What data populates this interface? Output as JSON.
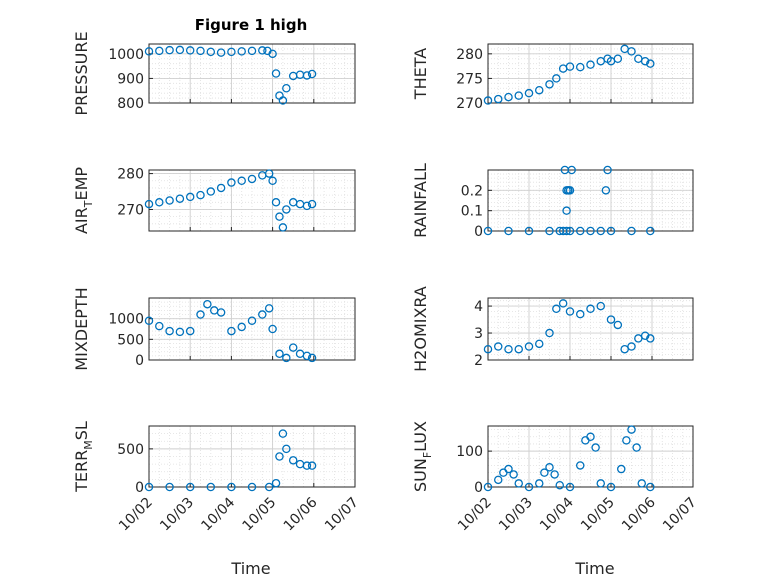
{
  "figure": {
    "title": "Figure 1 high",
    "xlabel": "Time",
    "x_tick_labels": [
      "10/02",
      "10/03",
      "10/04",
      "10/05",
      "10/06",
      "10/07"
    ],
    "x_ticks_days": [
      2,
      3,
      4,
      5,
      6,
      7
    ],
    "marker_color": "#0072BD"
  },
  "chart_data": [
    {
      "type": "scatter",
      "position": "row1-left",
      "ylabel": "PRESSURE",
      "ylabel_sub": "",
      "xlim": [
        "10/02",
        "10/07"
      ],
      "ylim": [
        800,
        1040
      ],
      "yticks": [
        800,
        900,
        1000
      ],
      "grid": true,
      "x": [
        "10/02 00:00",
        "10/02 06:00",
        "10/02 12:00",
        "10/02 18:00",
        "10/03 00:00",
        "10/03 06:00",
        "10/03 12:00",
        "10/03 18:00",
        "10/04 00:00",
        "10/04 06:00",
        "10/04 12:00",
        "10/04 18:00",
        "10/04 21:00",
        "10/05 00:00",
        "10/05 02:00",
        "10/05 04:00",
        "10/05 06:00",
        "10/05 08:00",
        "10/05 12:00",
        "10/05 16:00",
        "10/05 20:00",
        "10/05 23:00"
      ],
      "y": [
        1010,
        1012,
        1015,
        1016,
        1014,
        1012,
        1008,
        1005,
        1008,
        1010,
        1012,
        1014,
        1012,
        1000,
        920,
        830,
        810,
        860,
        910,
        915,
        912,
        918
      ]
    },
    {
      "type": "scatter",
      "position": "row1-right",
      "ylabel": "THETA",
      "ylabel_sub": "",
      "xlim": [
        "10/02",
        "10/07"
      ],
      "ylim": [
        270,
        282
      ],
      "yticks": [
        270,
        275,
        280
      ],
      "grid": true,
      "x": [
        "10/02 00:00",
        "10/02 06:00",
        "10/02 12:00",
        "10/02 18:00",
        "10/03 00:00",
        "10/03 06:00",
        "10/03 12:00",
        "10/03 16:00",
        "10/03 20:00",
        "10/04 00:00",
        "10/04 06:00",
        "10/04 12:00",
        "10/04 18:00",
        "10/04 22:00",
        "10/05 00:00",
        "10/05 04:00",
        "10/05 08:00",
        "10/05 12:00",
        "10/05 16:00",
        "10/05 20:00",
        "10/05 23:00"
      ],
      "y": [
        270.5,
        270.8,
        271.2,
        271.5,
        272.0,
        272.6,
        273.8,
        275.0,
        277.0,
        277.4,
        277.3,
        277.8,
        278.5,
        279.0,
        278.5,
        279.0,
        281.0,
        280.5,
        279.0,
        278.5,
        278.0
      ]
    },
    {
      "type": "scatter",
      "position": "row2-left",
      "ylabel": "AIR",
      "ylabel_sub": "T",
      "ylabel_suffix": "EMP",
      "xlim": [
        "10/02",
        "10/07"
      ],
      "ylim": [
        264,
        281
      ],
      "yticks": [
        270,
        280
      ],
      "grid": true,
      "x": [
        "10/02 00:00",
        "10/02 06:00",
        "10/02 12:00",
        "10/02 18:00",
        "10/03 00:00",
        "10/03 06:00",
        "10/03 12:00",
        "10/03 18:00",
        "10/04 00:00",
        "10/04 06:00",
        "10/04 12:00",
        "10/04 18:00",
        "10/04 22:00",
        "10/05 00:00",
        "10/05 02:00",
        "10/05 04:00",
        "10/05 06:00",
        "10/05 08:00",
        "10/05 12:00",
        "10/05 16:00",
        "10/05 20:00",
        "10/05 23:00"
      ],
      "y": [
        271.5,
        272.0,
        272.5,
        273.0,
        273.5,
        274.0,
        275.0,
        276.0,
        277.5,
        278.0,
        278.5,
        279.5,
        280.0,
        278.0,
        272.0,
        268.0,
        265.0,
        270.0,
        272.0,
        271.5,
        271.0,
        271.5
      ]
    },
    {
      "type": "scatter",
      "position": "row2-right",
      "ylabel": "RAINFALL",
      "ylabel_sub": "",
      "xlim": [
        "10/02",
        "10/07"
      ],
      "ylim": [
        0,
        0.3
      ],
      "yticks": [
        0,
        0.1,
        0.2
      ],
      "grid": true,
      "x": [
        "10/02 00:00",
        "10/02 12:00",
        "10/03 00:00",
        "10/03 12:00",
        "10/03 18:00",
        "10/03 20:00",
        "10/03 22:00",
        "10/04 00:00",
        "10/04 06:00",
        "10/04 12:00",
        "10/04 18:00",
        "10/05 00:00",
        "10/05 12:00",
        "10/05 23:00",
        "10/03 21:00",
        "10/03 22:00",
        "10/03 22:00",
        "10/03 23:00",
        "10/03 23:00",
        "10/04 00:00",
        "10/04 01:00",
        "10/04 21:00",
        "10/04 22:00"
      ],
      "y": [
        0,
        0,
        0,
        0,
        0,
        0,
        0,
        0,
        0,
        0,
        0,
        0,
        0,
        0,
        0.3,
        0.2,
        0.1,
        0.2,
        0.2,
        0.2,
        0.3,
        0.2,
        0.3
      ]
    },
    {
      "type": "scatter",
      "position": "row3-left",
      "ylabel": "MIXDEPTH",
      "ylabel_sub": "",
      "xlim": [
        "10/02",
        "10/07"
      ],
      "ylim": [
        0,
        1500
      ],
      "yticks": [
        0,
        500,
        1000
      ],
      "grid": true,
      "x": [
        "10/02 00:00",
        "10/02 06:00",
        "10/02 12:00",
        "10/02 18:00",
        "10/03 00:00",
        "10/03 06:00",
        "10/03 10:00",
        "10/03 14:00",
        "10/03 18:00",
        "10/04 00:00",
        "10/04 06:00",
        "10/04 12:00",
        "10/04 18:00",
        "10/04 22:00",
        "10/05 00:00",
        "10/05 04:00",
        "10/05 08:00",
        "10/05 12:00",
        "10/05 16:00",
        "10/05 20:00",
        "10/05 23:00"
      ],
      "y": [
        950,
        820,
        700,
        680,
        700,
        1100,
        1350,
        1200,
        1150,
        700,
        800,
        950,
        1100,
        1250,
        750,
        150,
        50,
        300,
        150,
        100,
        50
      ]
    },
    {
      "type": "scatter",
      "position": "row3-right",
      "ylabel": "H2OMIXRA",
      "ylabel_sub": "",
      "xlim": [
        "10/02",
        "10/07"
      ],
      "ylim": [
        2,
        4.3
      ],
      "yticks": [
        2,
        3,
        4
      ],
      "grid": true,
      "x": [
        "10/02 00:00",
        "10/02 06:00",
        "10/02 12:00",
        "10/02 18:00",
        "10/03 00:00",
        "10/03 06:00",
        "10/03 12:00",
        "10/03 16:00",
        "10/03 20:00",
        "10/04 00:00",
        "10/04 06:00",
        "10/04 12:00",
        "10/04 18:00",
        "10/05 00:00",
        "10/05 04:00",
        "10/05 08:00",
        "10/05 12:00",
        "10/05 16:00",
        "10/05 20:00",
        "10/05 23:00"
      ],
      "y": [
        2.4,
        2.5,
        2.4,
        2.4,
        2.5,
        2.6,
        3.0,
        3.9,
        4.1,
        3.8,
        3.7,
        3.9,
        4.0,
        3.5,
        3.3,
        2.4,
        2.5,
        2.8,
        2.9,
        2.8
      ]
    },
    {
      "type": "scatter",
      "position": "row4-left",
      "ylabel": "TERR",
      "ylabel_sub": "M",
      "ylabel_suffix": "SL",
      "xlim": [
        "10/02",
        "10/07"
      ],
      "ylim": [
        0,
        800
      ],
      "yticks": [
        0,
        500
      ],
      "grid": true,
      "x": [
        "10/02 00:00",
        "10/02 12:00",
        "10/03 00:00",
        "10/03 12:00",
        "10/04 00:00",
        "10/04 12:00",
        "10/04 22:00",
        "10/05 02:00",
        "10/05 04:00",
        "10/05 06:00",
        "10/05 08:00",
        "10/05 12:00",
        "10/05 16:00",
        "10/05 20:00",
        "10/05 23:00"
      ],
      "y": [
        0,
        0,
        0,
        0,
        0,
        0,
        0,
        50,
        400,
        700,
        500,
        350,
        300,
        280,
        280
      ]
    },
    {
      "type": "scatter",
      "position": "row4-right",
      "ylabel": "SUN",
      "ylabel_sub": "F",
      "ylabel_suffix": "LUX",
      "xlim": [
        "10/02",
        "10/07"
      ],
      "ylim": [
        0,
        170
      ],
      "yticks": [
        0,
        100
      ],
      "grid": true,
      "x": [
        "10/02 00:00",
        "10/02 06:00",
        "10/02 09:00",
        "10/02 12:00",
        "10/02 15:00",
        "10/02 18:00",
        "10/03 00:00",
        "10/03 06:00",
        "10/03 09:00",
        "10/03 12:00",
        "10/03 15:00",
        "10/03 18:00",
        "10/04 00:00",
        "10/04 06:00",
        "10/04 09:00",
        "10/04 12:00",
        "10/04 15:00",
        "10/04 18:00",
        "10/05 00:00",
        "10/05 06:00",
        "10/05 09:00",
        "10/05 12:00",
        "10/05 15:00",
        "10/05 18:00",
        "10/05 23:00"
      ],
      "y": [
        0,
        20,
        40,
        50,
        35,
        10,
        0,
        10,
        40,
        55,
        35,
        5,
        0,
        60,
        130,
        140,
        110,
        10,
        0,
        50,
        130,
        160,
        110,
        10,
        0
      ]
    }
  ]
}
